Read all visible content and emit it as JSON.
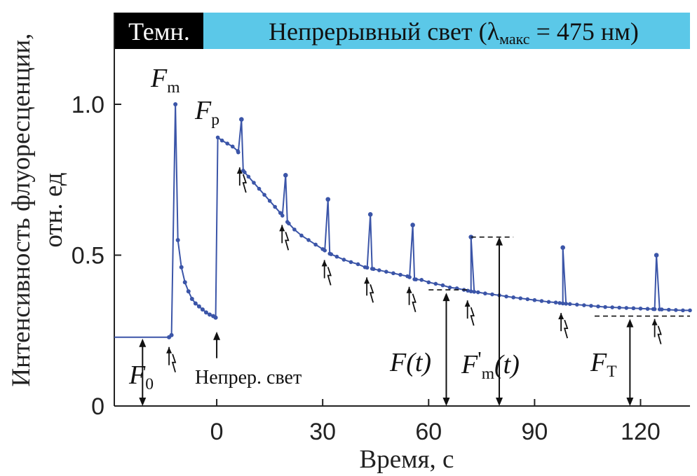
{
  "chart_data": {
    "type": "line",
    "title": "",
    "header_bar": {
      "dark_label": "Темн.",
      "light_label_parts": [
        "Непрерывный свет (",
        "λ",
        "макс",
        " = 475 нм)"
      ],
      "dark_color": "#000000",
      "light_color": "#5bc8e8"
    },
    "xlabel": "Время, с",
    "ylabel_line1": "Интенсивность флуоресценции,",
    "ylabel_line2": "отн. ед",
    "xlim": [
      -29,
      134
    ],
    "ylim": [
      0,
      1.2
    ],
    "xticks": [
      0,
      30,
      60,
      90,
      120
    ],
    "xtick_labels": [
      "0",
      "30",
      "60",
      "90",
      "120"
    ],
    "yticks": [
      0,
      0.5,
      1.0
    ],
    "ytick_labels": [
      "0",
      "0.5",
      "1.0"
    ],
    "grid": false,
    "line_color": "#3b55a8",
    "series": [
      {
        "dark": {
          "x": [
            -29,
            -13.5
          ],
          "y": [
            0.228,
            0.228
          ]
        },
        "dark_points": {
          "x": [
            -13.5,
            -12.8
          ],
          "y": [
            0.228,
            0.235
          ]
        },
        "fm_peak": {
          "x": [
            -11.7
          ],
          "y": [
            1.0
          ]
        },
        "dark_decay": {
          "x": [
            -11.7,
            -11.0,
            -10.0,
            -9.0,
            -8.0,
            -7.0,
            -6.0,
            -5.0,
            -4.0,
            -3.0,
            -2.0,
            -1.0,
            -0.3
          ],
          "y": [
            1.0,
            0.55,
            0.46,
            0.41,
            0.38,
            0.355,
            0.34,
            0.33,
            0.32,
            0.31,
            0.303,
            0.298,
            0.293
          ]
        },
        "continuous_baseline": {
          "x": [
            0.3,
            1.5,
            3,
            4.5,
            6,
            7.5,
            9,
            10.5,
            12,
            13.5,
            15,
            16.5,
            18,
            20,
            22,
            24,
            26,
            28,
            30,
            32,
            34,
            36,
            38,
            40,
            42,
            44,
            46,
            48,
            50,
            52,
            54,
            56,
            58,
            60,
            62,
            64,
            66,
            68,
            70,
            72,
            74,
            76,
            78,
            80,
            82,
            84,
            86,
            88,
            90,
            92,
            94,
            96,
            98,
            100,
            102,
            104,
            106,
            108,
            110,
            112,
            114,
            116,
            118,
            120,
            122,
            124,
            126,
            128,
            130,
            132,
            134
          ],
          "y": [
            0.89,
            0.88,
            0.87,
            0.86,
            0.845,
            0.78,
            0.76,
            0.74,
            0.72,
            0.7,
            0.68,
            0.66,
            0.64,
            0.61,
            0.585,
            0.565,
            0.55,
            0.535,
            0.52,
            0.505,
            0.495,
            0.485,
            0.477,
            0.47,
            0.46,
            0.455,
            0.45,
            0.445,
            0.44,
            0.435,
            0.43,
            0.42,
            0.418,
            0.41,
            0.405,
            0.4,
            0.393,
            0.39,
            0.385,
            0.38,
            0.377,
            0.373,
            0.37,
            0.367,
            0.363,
            0.36,
            0.357,
            0.354,
            0.351,
            0.348,
            0.345,
            0.343,
            0.34,
            0.338,
            0.336,
            0.334,
            0.332,
            0.33,
            0.328,
            0.327,
            0.326,
            0.325,
            0.324,
            0.323,
            0.322,
            0.321,
            0.32,
            0.319,
            0.318,
            0.317,
            0.317
          ]
        },
        "flash_peaks": {
          "x": [
            7,
            19.5,
            31.5,
            43.5,
            55.5,
            72.0,
            98.0,
            124.5
          ],
          "y": [
            0.95,
            0.765,
            0.685,
            0.635,
            0.6,
            0.56,
            0.525,
            0.5
          ]
        }
      }
    ],
    "annotations": {
      "fm_label": "F",
      "fm_sub": "m",
      "fp_label": "F",
      "fp_sub": "p",
      "f0_label": "F",
      "f0_sub": "0",
      "ft_label": "F(t)",
      "fmt_label": "F",
      "fmt_sub": "m",
      "fmt_prime": "'",
      "fmt_tail": "(t)",
      "fT_label": "F",
      "fT_sub": "T",
      "light_on_label": "Непрер. свет",
      "ft_x": 65,
      "ft_y": 0.385,
      "fmt_x": 80,
      "fmt_y": 0.56,
      "fT_x": 117,
      "fT_y": 0.298,
      "f0_x": -21,
      "f0_y": 0.228
    },
    "flash_markers_x": [
      -13.5,
      6.5,
      18.5,
      30.5,
      42.5,
      54.5,
      71,
      97.5,
      124
    ]
  }
}
